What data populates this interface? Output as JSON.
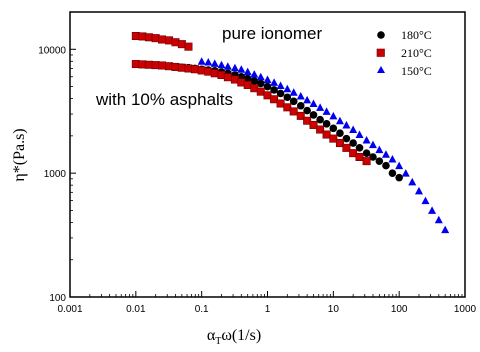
{
  "chart_data": {
    "type": "scatter",
    "x_scale": "log",
    "y_scale": "log",
    "xlim": [
      0.001,
      1000
    ],
    "ylim": [
      100,
      20000
    ],
    "xlabel": "αTω(1/s)",
    "ylabel": "η*(Pa.s)",
    "x_ticks": [
      "0.001",
      "0.01",
      "0.1",
      "1",
      "10",
      "100",
      "1000"
    ],
    "y_ticks": [
      "100",
      "1000",
      "10000"
    ],
    "grid": false,
    "legend_position": "top-right",
    "annotations": [
      "pure ionomer",
      "with 10% asphalts"
    ],
    "series": [
      {
        "name": "180°C",
        "marker": "circle",
        "color": "#000000",
        "x": [
          0.04,
          0.05,
          0.063,
          0.079,
          0.1,
          0.126,
          0.158,
          0.2,
          0.25,
          0.32,
          0.4,
          0.5,
          0.63,
          0.79,
          1.0,
          1.26,
          1.58,
          2.0,
          2.5,
          3.2,
          4.0,
          5.0,
          6.3,
          7.9,
          10,
          12.6,
          15.8,
          20,
          25,
          32,
          40,
          50,
          63,
          79,
          100
        ],
        "y": [
          7200,
          7150,
          7100,
          7000,
          6900,
          6800,
          6700,
          6550,
          6400,
          6200,
          6000,
          5800,
          5550,
          5300,
          5000,
          4700,
          4400,
          4100,
          3800,
          3500,
          3200,
          2950,
          2700,
          2500,
          2300,
          2100,
          1900,
          1750,
          1600,
          1450,
          1350,
          1250,
          1150,
          1000,
          920
        ]
      },
      {
        "name": "210°C",
        "marker": "square",
        "color": "#cc0000",
        "x": [
          0.01,
          0.0126,
          0.0158,
          0.02,
          0.025,
          0.032,
          0.04,
          0.05,
          0.063,
          0.079,
          0.1,
          0.126,
          0.158,
          0.2,
          0.25,
          0.32,
          0.4,
          0.5,
          0.63,
          0.79,
          1.0,
          1.26,
          1.58,
          2.0,
          2.5,
          3.2,
          4.0,
          5.0,
          6.3,
          7.9,
          10,
          12.6,
          15.8,
          20,
          25,
          32,
          0.01,
          0.0126,
          0.0158,
          0.02,
          0.025,
          0.032,
          0.04,
          0.05,
          0.063
        ],
        "y": [
          7600,
          7550,
          7500,
          7450,
          7400,
          7300,
          7200,
          7100,
          7000,
          6900,
          6750,
          6600,
          6400,
          6200,
          5950,
          5700,
          5400,
          5150,
          4850,
          4550,
          4250,
          3950,
          3650,
          3400,
          3150,
          2900,
          2650,
          2450,
          2250,
          2050,
          1900,
          1750,
          1600,
          1450,
          1350,
          1250,
          12800,
          12700,
          12500,
          12300,
          12000,
          11800,
          11400,
          11000,
          10500
        ]
      },
      {
        "name": "150°C",
        "marker": "triangle",
        "color": "#0000ee",
        "x": [
          0.1,
          0.126,
          0.158,
          0.2,
          0.25,
          0.32,
          0.4,
          0.5,
          0.63,
          0.79,
          1.0,
          1.26,
          1.58,
          2.0,
          2.5,
          3.2,
          4.0,
          5.0,
          6.3,
          7.9,
          10,
          12.6,
          15.8,
          20,
          25,
          32,
          40,
          50,
          63,
          79,
          100,
          126,
          158,
          200,
          251,
          316,
          400,
          500
        ],
        "y": [
          8000,
          7900,
          7700,
          7500,
          7300,
          7100,
          6900,
          6600,
          6300,
          6000,
          5700,
          5400,
          5100,
          4800,
          4500,
          4200,
          3900,
          3650,
          3400,
          3150,
          2900,
          2650,
          2450,
          2250,
          2050,
          1850,
          1700,
          1550,
          1420,
          1300,
          1150,
          1000,
          850,
          720,
          600,
          500,
          420,
          350
        ]
      }
    ]
  }
}
